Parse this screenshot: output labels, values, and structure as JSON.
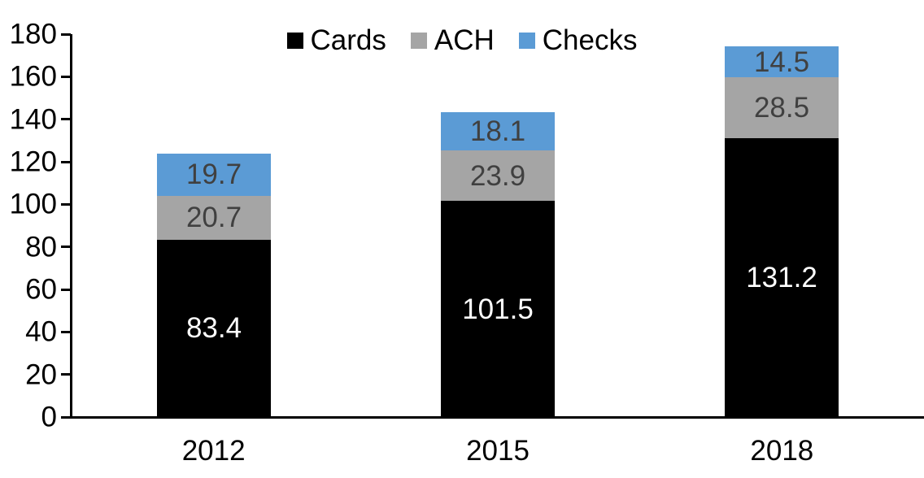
{
  "chart_data": {
    "type": "bar",
    "stacked": true,
    "title": "",
    "categories": [
      "2012",
      "2015",
      "2018"
    ],
    "series": [
      {
        "name": "Cards",
        "color": "#000000",
        "label_color": "#ffffff",
        "values": [
          83.4,
          101.5,
          131.2
        ]
      },
      {
        "name": "ACH",
        "color": "#A5A5A5",
        "label_color": "#404040",
        "values": [
          20.7,
          23.9,
          28.5
        ]
      },
      {
        "name": "Checks",
        "color": "#5B9BD5",
        "label_color": "#404040",
        "values": [
          19.7,
          18.1,
          14.5
        ]
      }
    ],
    "value_labels": {
      "Cards": [
        "83.4",
        "101.5",
        "131.2"
      ],
      "ACH": [
        "20.7",
        "23.9",
        "28.5"
      ],
      "Checks": [
        "19.7",
        "18.1",
        "14.5"
      ]
    },
    "y_axis": {
      "min": 0,
      "max": 180,
      "step": 20,
      "tick_labels": [
        "0",
        "20",
        "40",
        "60",
        "80",
        "100",
        "120",
        "140",
        "160",
        "180"
      ]
    },
    "x_axis": {
      "tick_labels": [
        "2012",
        "2015",
        "2018"
      ]
    },
    "legend": {
      "position": "top",
      "entries": [
        "Cards",
        "ACH",
        "Checks"
      ]
    },
    "grid": false,
    "axis_color": "#000000",
    "background": "#ffffff"
  }
}
